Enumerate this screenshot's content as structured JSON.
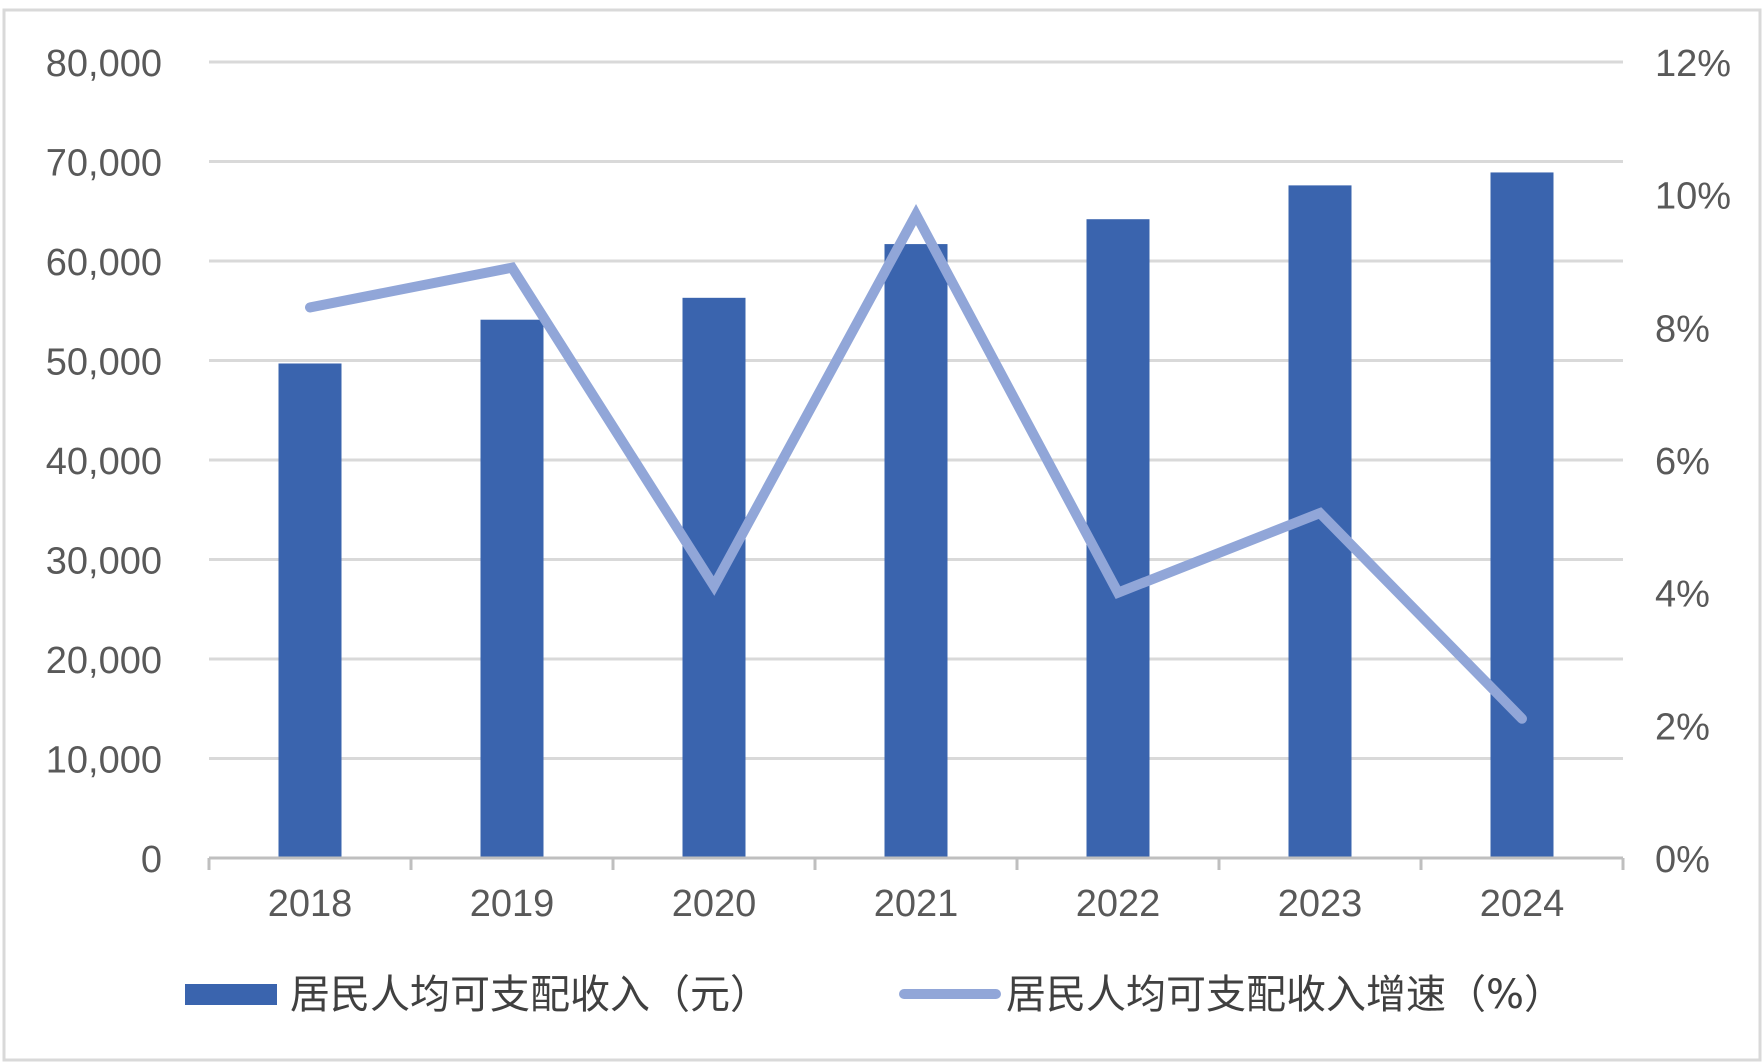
{
  "chart_data": {
    "type": "bar",
    "categories": [
      "2018",
      "2019",
      "2020",
      "2021",
      "2022",
      "2023",
      "2024"
    ],
    "series": [
      {
        "name": "居民人均可支配收入（元）",
        "type": "bar",
        "axis": "left",
        "values": [
          49700,
          54100,
          56300,
          61700,
          64200,
          67600,
          68900
        ],
        "color": "#3A64AE"
      },
      {
        "name": "居民人均可支配收入增速（%）",
        "type": "line",
        "axis": "right",
        "values": [
          8.3,
          8.9,
          4.1,
          9.7,
          4.0,
          5.2,
          2.1
        ],
        "color": "#91A6D8"
      }
    ],
    "y_left": {
      "min": 0,
      "max": 80000,
      "step": 10000,
      "tick_labels": [
        "0",
        "10,000",
        "20,000",
        "30,000",
        "40,000",
        "50,000",
        "60,000",
        "70,000",
        "80,000"
      ]
    },
    "y_right": {
      "min": 0,
      "max": 12,
      "step": 2,
      "tick_labels": [
        "0%",
        "2%",
        "4%",
        "6%",
        "8%",
        "10%",
        "12%"
      ]
    },
    "grid": true,
    "legend_position": "bottom",
    "gridline_color": "#D9D9D9",
    "axis_color": "#BFBFBF"
  }
}
